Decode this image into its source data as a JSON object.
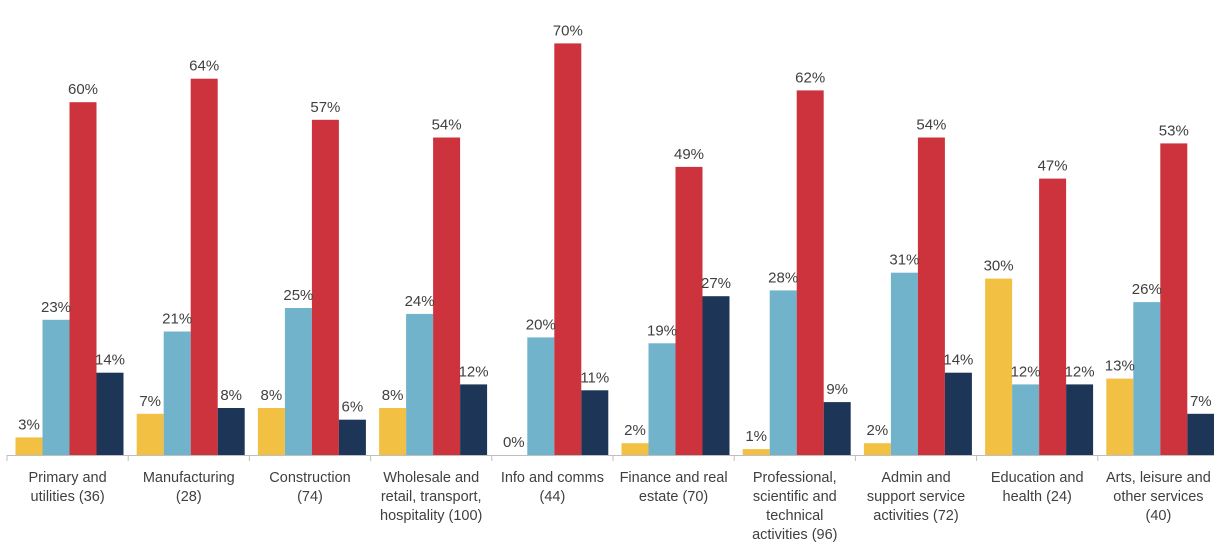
{
  "chart_data": {
    "type": "bar",
    "title": "",
    "xlabel": "",
    "ylabel": "",
    "ylim": [
      0,
      72
    ],
    "grid": false,
    "legend": "none",
    "categories": [
      "Primary and utilities (36)",
      "Manufacturing (28)",
      "Construction (74)",
      "Wholesale and retail, transport, hospitality (100)",
      "Info and comms (44)",
      "Finance and real estate (70)",
      "Professional, scientific and technical activities (96)",
      "Admin and support service activities (72)",
      "Education and health (24)",
      "Arts, leisure and other services (40)"
    ],
    "category_lines": [
      [
        "Primary and",
        "utilities (36)"
      ],
      [
        "Manufacturing",
        "(28)"
      ],
      [
        "Construction",
        "(74)"
      ],
      [
        "Wholesale and",
        "retail, transport,",
        "hospitality (100)"
      ],
      [
        "Info and comms",
        "(44)"
      ],
      [
        "Finance and real",
        "estate (70)"
      ],
      [
        "Professional,",
        "scientific and",
        "technical",
        "activities (96)"
      ],
      [
        "Admin and",
        "support service",
        "activities (72)"
      ],
      [
        "Education and",
        "health (24)"
      ],
      [
        "Arts, leisure and",
        "other services",
        "(40)"
      ]
    ],
    "series": [
      {
        "color": "#F2C043",
        "values": [
          3,
          7,
          8,
          8,
          0,
          2,
          1,
          2,
          30,
          13
        ],
        "labels": [
          "3%",
          "7%",
          "8%",
          "8%",
          "0%",
          "2%",
          "1%",
          "2%",
          "30%",
          "13%"
        ]
      },
      {
        "color": "#72B3CC",
        "values": [
          23,
          21,
          25,
          24,
          20,
          19,
          28,
          31,
          12,
          26
        ],
        "labels": [
          "23%",
          "21%",
          "25%",
          "24%",
          "20%",
          "19%",
          "28%",
          "31%",
          "12%",
          "26%"
        ]
      },
      {
        "color": "#CD333D",
        "values": [
          60,
          64,
          57,
          54,
          70,
          49,
          62,
          54,
          47,
          53
        ],
        "labels": [
          "60%",
          "64%",
          "57%",
          "54%",
          "70%",
          "49%",
          "62%",
          "54%",
          "47%",
          "53%"
        ]
      },
      {
        "color": "#1D3557",
        "values": [
          14,
          8,
          6,
          12,
          11,
          27,
          9,
          14,
          12,
          7
        ],
        "labels": [
          "14%",
          "8%",
          "6%",
          "12%",
          "11%",
          "27%",
          "9%",
          "14%",
          "12%",
          "7%"
        ]
      }
    ]
  }
}
